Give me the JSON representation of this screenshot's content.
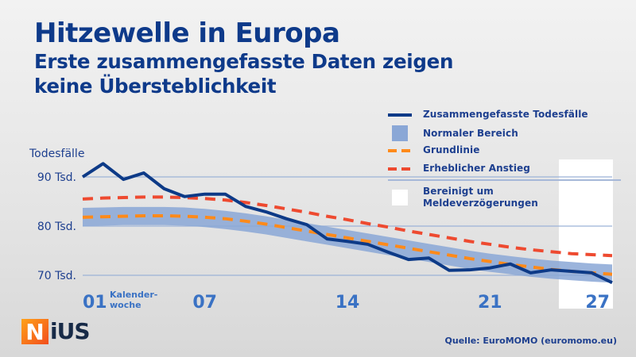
{
  "title": {
    "main": "Hitzewelle in Europa",
    "sub_line1": "Erste zusammengefasste Daten zeigen",
    "sub_line2": "keine Übersteblichkeit"
  },
  "legend": [
    {
      "label": "Zusammengefasste Todesfälle",
      "color": "#0d3a87",
      "kind": "line"
    },
    {
      "label": "Normaler Bereich",
      "color": "#8aa7d6",
      "kind": "box"
    },
    {
      "label": "Grundlinie",
      "color": "#ff8a1a",
      "kind": "dash"
    },
    {
      "label": "Erheblicher Anstieg",
      "color": "#ee4a30",
      "kind": "dash"
    },
    {
      "label_line1": "Bereinigt um",
      "label_line2": "Meldeverzögerungen",
      "color": "#ffffff",
      "kind": "box"
    }
  ],
  "logo": {
    "n": "N",
    "rest": "iUS"
  },
  "source": "Quelle: EuroMOMO (euromomo.eu)",
  "chart_data": {
    "type": "line",
    "title": "Hitzewelle in Europa",
    "ylabel": "Todesfälle",
    "xlabel": "Kalender-woche",
    "ylim": [
      66,
      94
    ],
    "yticks": [
      {
        "value": 70,
        "label": "70 Tsd."
      },
      {
        "value": 80,
        "label": "80 Tsd."
      },
      {
        "value": 90,
        "label": "90 Tsd."
      }
    ],
    "xlim": [
      1,
      27
    ],
    "xticks": [
      {
        "value": 1,
        "label": "01"
      },
      {
        "value": 7,
        "label": "07"
      },
      {
        "value": 14,
        "label": "14"
      },
      {
        "value": 21,
        "label": "21"
      },
      {
        "value": 27,
        "label": "27"
      }
    ],
    "xlabel_line1": "Kalender-",
    "xlabel_line2": "woche",
    "grid": "horizontal",
    "adjusted_region": {
      "from_week": 24.5,
      "to_week": 27.5,
      "label": "Bereinigt um Meldeverzögerungen"
    },
    "x": [
      1,
      2,
      3,
      4,
      5,
      6,
      7,
      8,
      9,
      10,
      11,
      12,
      13,
      14,
      15,
      16,
      17,
      18,
      19,
      20,
      21,
      22,
      23,
      24,
      25,
      26,
      27
    ],
    "series": [
      {
        "name": "Zusammengefasste Todesfälle",
        "color": "#0d3a87",
        "values": [
          90.0,
          92.7,
          89.5,
          90.8,
          87.6,
          86.0,
          86.5,
          86.5,
          84.0,
          82.9,
          81.5,
          80.3,
          77.4,
          76.9,
          76.3,
          74.7,
          73.2,
          73.5,
          71.0,
          71.1,
          71.5,
          72.3,
          70.5,
          71.1,
          70.8,
          70.5,
          68.5
        ]
      },
      {
        "name": "Grundlinie",
        "color": "#ff8a1a",
        "values": [
          81.8,
          81.9,
          82.0,
          82.1,
          82.1,
          82.0,
          81.8,
          81.5,
          81.0,
          80.4,
          79.7,
          79.0,
          78.3,
          77.6,
          76.9,
          76.2,
          75.5,
          74.8,
          74.1,
          73.4,
          72.8,
          72.2,
          71.7,
          71.2,
          70.8,
          70.5,
          70.2
        ]
      },
      {
        "name": "Erheblicher Anstieg",
        "color": "#ee4a30",
        "values": [
          85.5,
          85.7,
          85.8,
          85.9,
          85.9,
          85.8,
          85.6,
          85.3,
          84.8,
          84.2,
          83.5,
          82.8,
          82.0,
          81.3,
          80.5,
          79.8,
          79.0,
          78.3,
          77.6,
          76.9,
          76.3,
          75.7,
          75.2,
          74.8,
          74.4,
          74.2,
          74.0
        ]
      },
      {
        "name": "Normaler Bereich (oben)",
        "color": "#8aa7d6",
        "values": [
          83.7,
          83.8,
          83.9,
          83.9,
          83.9,
          83.8,
          83.5,
          83.1,
          82.6,
          82.0,
          81.3,
          80.6,
          79.9,
          79.2,
          78.5,
          77.8,
          77.1,
          76.4,
          75.7,
          75.0,
          74.4,
          73.9,
          73.4,
          73.0,
          72.7,
          72.4,
          72.2
        ]
      },
      {
        "name": "Normaler Bereich (unten)",
        "color": "#8aa7d6",
        "values": [
          80.0,
          80.1,
          80.2,
          80.2,
          80.2,
          80.1,
          79.8,
          79.4,
          78.9,
          78.3,
          77.6,
          76.9,
          76.2,
          75.5,
          74.8,
          74.1,
          73.4,
          72.7,
          72.0,
          71.3,
          70.7,
          70.2,
          69.7,
          69.3,
          69.0,
          68.7,
          68.5
        ]
      }
    ]
  }
}
